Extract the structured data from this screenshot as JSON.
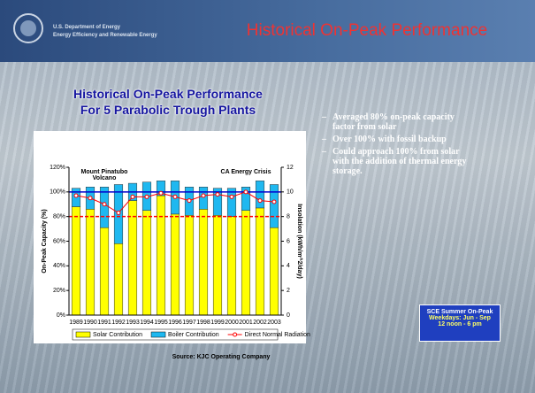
{
  "header": {
    "logo_line1": "U.S. Department of Energy",
    "logo_line2": "Energy Efficiency and Renewable Energy",
    "title": "Historical On-Peak Performance"
  },
  "chart_data": {
    "type": "bar",
    "stacked": true,
    "title": "Historical On-Peak Performance",
    "subtitle": "For 5 Parabolic Trough Plants",
    "y_label": "On-Peak Capacity (%)",
    "y2_label": "Insolation (kWh/m^2/day)",
    "categories": [
      "1989",
      "1990",
      "1991",
      "1992",
      "1993",
      "1994",
      "1995",
      "1996",
      "1997",
      "1998",
      "1999",
      "2000",
      "2001",
      "2002",
      "2003"
    ],
    "series": [
      {
        "name": "Solar Contribution",
        "type": "bar",
        "color": "#ffff00",
        "values": [
          88,
          86,
          71,
          58,
          93,
          85,
          97,
          82,
          81,
          86,
          81,
          80,
          85,
          87,
          71
        ]
      },
      {
        "name": "Boiler Contribution",
        "type": "bar",
        "color": "#1fb8f0",
        "values": [
          15,
          18,
          33,
          48,
          14,
          23,
          12,
          27,
          23,
          18,
          22,
          23,
          19,
          22,
          35
        ]
      },
      {
        "name": "Direct Normal Radiation",
        "type": "line",
        "axis": "y2",
        "color": "#ff0000",
        "values": [
          9.7,
          9.5,
          9.0,
          8.3,
          9.6,
          9.6,
          9.9,
          9.6,
          9.3,
          9.7,
          9.8,
          9.6,
          10.0,
          9.3,
          9.2
        ]
      }
    ],
    "reference_lines": [
      {
        "value": 80,
        "color": "#ff0000",
        "dashed": true
      },
      {
        "value": 100,
        "color": "#0000cc",
        "dashed": false
      }
    ],
    "annotations": [
      {
        "text": "Mount Pinatubo Volcano",
        "category": "1991"
      },
      {
        "text": "CA Energy Crisis",
        "category": "2001"
      }
    ],
    "ylim": [
      0,
      120
    ],
    "yticks": [
      {
        "value": 0,
        "label": "0%"
      },
      {
        "value": 20,
        "label": "20%"
      },
      {
        "value": 40,
        "label": "40%"
      },
      {
        "value": 60,
        "label": "60%"
      },
      {
        "value": 80,
        "label": "80%"
      },
      {
        "value": 100,
        "label": "100%"
      },
      {
        "value": 120,
        "label": "120%"
      }
    ],
    "y2lim": [
      0,
      12
    ],
    "y2ticks": [
      0,
      2,
      4,
      6,
      8,
      10,
      12
    ],
    "legend": "bottom"
  },
  "bullets": [
    "Averaged 80% on-peak capacity factor from solar",
    "Over 100% with fossil backup",
    "Could approach 100% from solar with the addition of thermal energy storage."
  ],
  "note_box": {
    "line1": "SCE Summer On-Peak",
    "line2": "Weekdays: Jun - Sep",
    "line3": "12 noon - 6 pm"
  },
  "source": "Source: KJC Operating Company"
}
